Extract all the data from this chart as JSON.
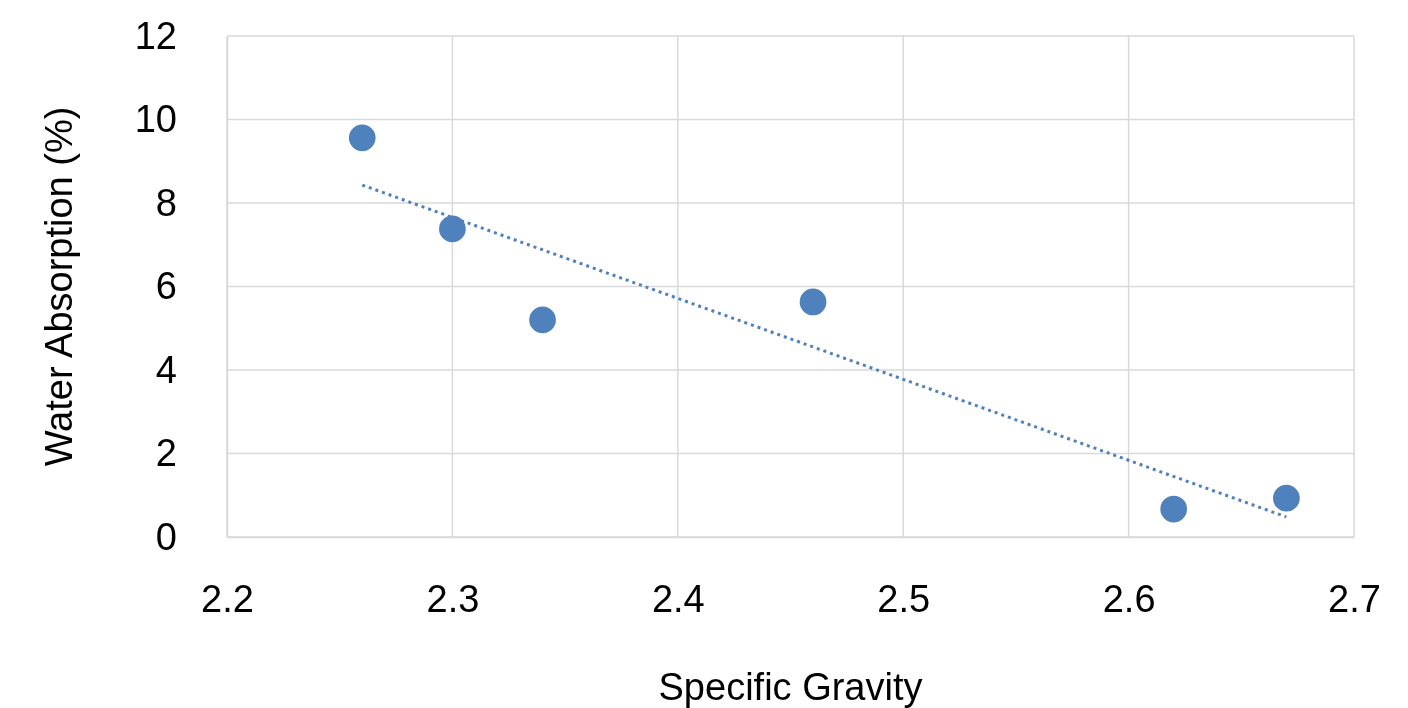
{
  "chart_data": {
    "type": "scatter",
    "xlabel": "Specific Gravity",
    "ylabel": "Water Absorption (%)",
    "xlim": [
      2.2,
      2.7
    ],
    "xticks": [
      {
        "value": 2.2,
        "label": "2.2"
      },
      {
        "value": 2.3,
        "label": "2.3"
      },
      {
        "value": 2.4,
        "label": "2.4"
      },
      {
        "value": 2.5,
        "label": "2.5"
      },
      {
        "value": 2.6,
        "label": "2.6"
      },
      {
        "value": 2.7,
        "label": "2.7"
      }
    ],
    "ylim": [
      0,
      12
    ],
    "yticks": [
      0,
      2,
      4,
      6,
      8,
      10,
      12
    ],
    "grid": true,
    "series": [
      {
        "marker": "circle",
        "color": "#4f81bd",
        "x": [
          2.26,
          2.3,
          2.34,
          2.46,
          2.62,
          2.67
        ],
        "values": [
          9.56,
          7.38,
          5.2,
          5.63,
          0.67,
          0.93
        ]
      },
      {
        "type": "line",
        "color": "#4f81bd",
        "line_style": "dotted",
        "x": [
          2.26,
          2.67
        ],
        "values": [
          8.43,
          0.48
        ]
      }
    ]
  }
}
